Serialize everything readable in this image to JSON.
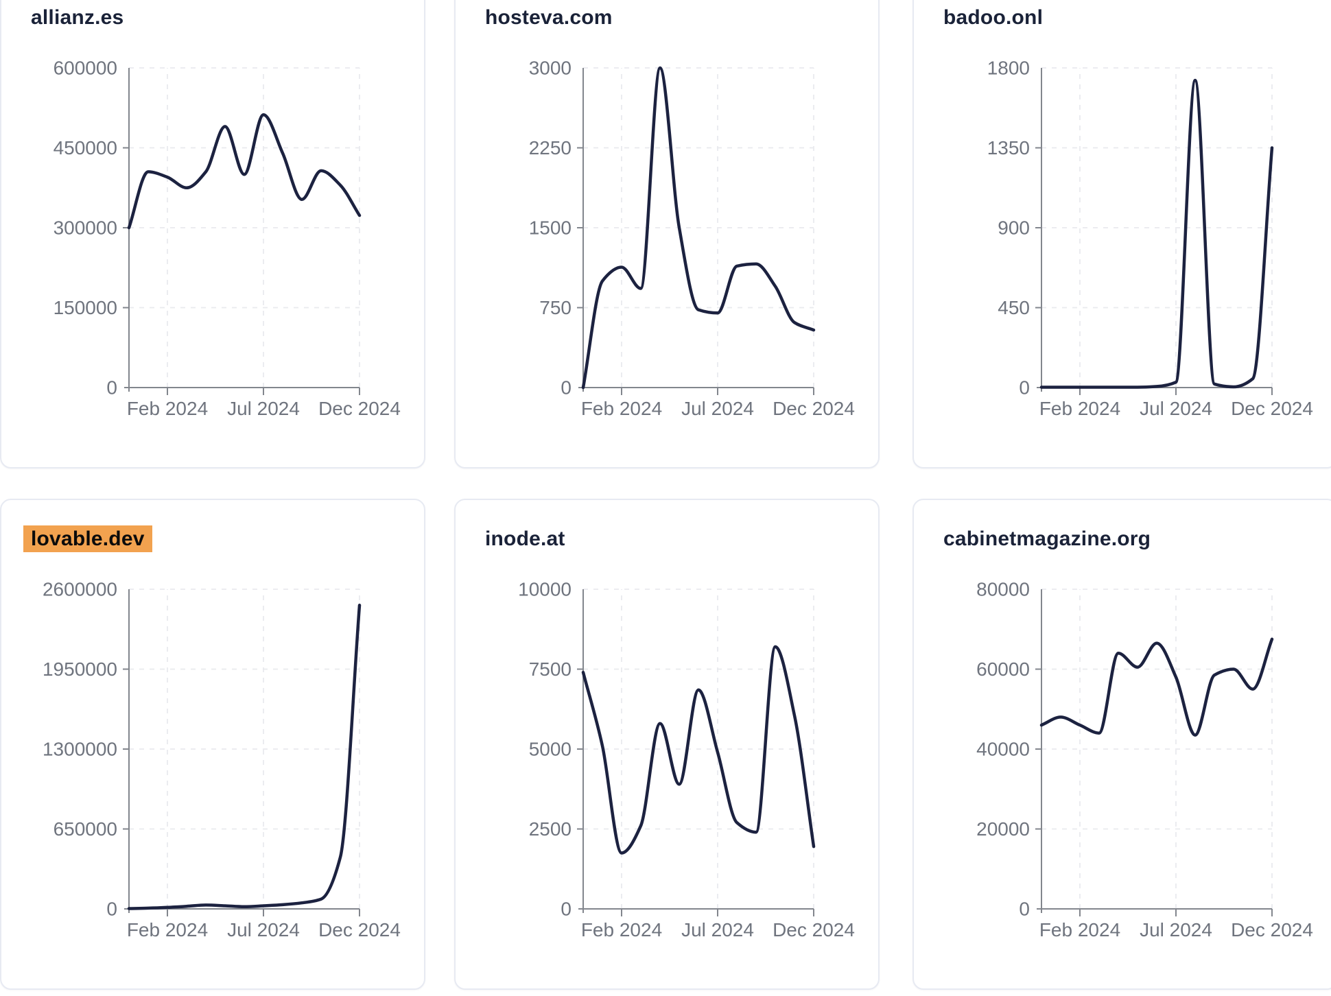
{
  "page": {
    "description": "Grid of six domain traffic sparkline charts",
    "highlight_color": "#f2a24f",
    "line_color": "#1c2240",
    "title_color": "#1a2238",
    "axis_color": "#82868d",
    "tick_label_color": "#6f747e",
    "grid_color": "#e9eaee",
    "card_border_color": "#e7eaf2"
  },
  "chart_data": [
    {
      "type": "line",
      "title": "allianz.es",
      "title_highlighted": false,
      "x": [
        "Dec 2023",
        "Jan 2024",
        "Feb 2024",
        "Mar 2024",
        "Apr 2024",
        "May 2024",
        "Jun 2024",
        "Jul 2024",
        "Aug 2024",
        "Sep 2024",
        "Oct 2024",
        "Nov 2024",
        "Dec 2024"
      ],
      "values": [
        300000,
        405000,
        395000,
        375000,
        405000,
        490000,
        400000,
        512000,
        440000,
        353000,
        407000,
        380000,
        323000
      ],
      "x_tick_labels": [
        "Feb 2024",
        "Jul 2024",
        "Dec 2024"
      ],
      "y_ticks": [
        0,
        150000,
        300000,
        450000,
        600000
      ],
      "ylim": [
        0,
        600000
      ],
      "grid": true,
      "legend": "none",
      "line_color": "#1c2240"
    },
    {
      "type": "line",
      "title": "hosteva.com",
      "title_highlighted": false,
      "x": [
        "Dec 2023",
        "Jan 2024",
        "Feb 2024",
        "Mar 2024",
        "Apr 2024",
        "May 2024",
        "Jun 2024",
        "Jul 2024",
        "Aug 2024",
        "Sep 2024",
        "Oct 2024",
        "Nov 2024",
        "Dec 2024"
      ],
      "values": [
        0,
        1000,
        1130,
        930,
        3000,
        1500,
        730,
        700,
        1140,
        1160,
        950,
        610,
        540
      ],
      "x_tick_labels": [
        "Feb 2024",
        "Jul 2024",
        "Dec 2024"
      ],
      "y_ticks": [
        0,
        750,
        1500,
        2250,
        3000
      ],
      "ylim": [
        0,
        3000
      ],
      "grid": true,
      "legend": "none",
      "line_color": "#1c2240"
    },
    {
      "type": "line",
      "title": "badoo.onl",
      "title_highlighted": false,
      "x": [
        "Dec 2023",
        "Jan 2024",
        "Feb 2024",
        "Mar 2024",
        "Apr 2024",
        "May 2024",
        "Jun 2024",
        "Jul 2024",
        "Aug 2024",
        "Sep 2024",
        "Oct 2024",
        "Nov 2024",
        "Dec 2024"
      ],
      "values": [
        2,
        2,
        2,
        2,
        2,
        2,
        6,
        30,
        1730,
        20,
        4,
        50,
        1350
      ],
      "x_tick_labels": [
        "Feb 2024",
        "Jul 2024",
        "Dec 2024"
      ],
      "y_ticks": [
        0,
        450,
        900,
        1350,
        1800
      ],
      "ylim": [
        0,
        1800
      ],
      "grid": true,
      "legend": "none",
      "line_color": "#1c2240"
    },
    {
      "type": "line",
      "title": "lovable.dev",
      "title_highlighted": true,
      "x": [
        "Dec 2023",
        "Jan 2024",
        "Feb 2024",
        "Mar 2024",
        "Apr 2024",
        "May 2024",
        "Jun 2024",
        "Jul 2024",
        "Aug 2024",
        "Sep 2024",
        "Oct 2024",
        "Nov 2024",
        "Dec 2024"
      ],
      "values": [
        3000,
        6000,
        12000,
        21000,
        31000,
        25000,
        18000,
        25000,
        34000,
        49000,
        80000,
        420000,
        2470000
      ],
      "x_tick_labels": [
        "Feb 2024",
        "Jul 2024",
        "Dec 2024"
      ],
      "y_ticks": [
        0,
        650000,
        1300000,
        1950000,
        2600000
      ],
      "ylim": [
        0,
        2600000
      ],
      "grid": true,
      "legend": "none",
      "line_color": "#1c2240"
    },
    {
      "type": "line",
      "title": "inode.at",
      "title_highlighted": false,
      "x": [
        "Dec 2023",
        "Jan 2024",
        "Feb 2024",
        "Mar 2024",
        "Apr 2024",
        "May 2024",
        "Jun 2024",
        "Jul 2024",
        "Aug 2024",
        "Sep 2024",
        "Oct 2024",
        "Nov 2024",
        "Dec 2024"
      ],
      "values": [
        7400,
        5100,
        1750,
        2600,
        5800,
        3900,
        6850,
        4900,
        2700,
        2400,
        8200,
        6050,
        1950
      ],
      "x_tick_labels": [
        "Feb 2024",
        "Jul 2024",
        "Dec 2024"
      ],
      "y_ticks": [
        0,
        2500,
        5000,
        7500,
        10000
      ],
      "ylim": [
        0,
        10000
      ],
      "grid": true,
      "legend": "none",
      "line_color": "#1c2240"
    },
    {
      "type": "line",
      "title": "cabinetmagazine.org",
      "title_highlighted": false,
      "x": [
        "Dec 2023",
        "Jan 2024",
        "Feb 2024",
        "Mar 2024",
        "Apr 2024",
        "May 2024",
        "Jun 2024",
        "Jul 2024",
        "Aug 2024",
        "Sep 2024",
        "Oct 2024",
        "Nov 2024",
        "Dec 2024"
      ],
      "values": [
        46000,
        48000,
        46000,
        44000,
        64000,
        60500,
        66500,
        58000,
        43500,
        58500,
        60000,
        55000,
        67500
      ],
      "x_tick_labels": [
        "Feb 2024",
        "Jul 2024",
        "Dec 2024"
      ],
      "y_ticks": [
        0,
        20000,
        40000,
        60000,
        80000
      ],
      "ylim": [
        0,
        80000
      ],
      "grid": true,
      "legend": "none",
      "line_color": "#1c2240"
    }
  ]
}
